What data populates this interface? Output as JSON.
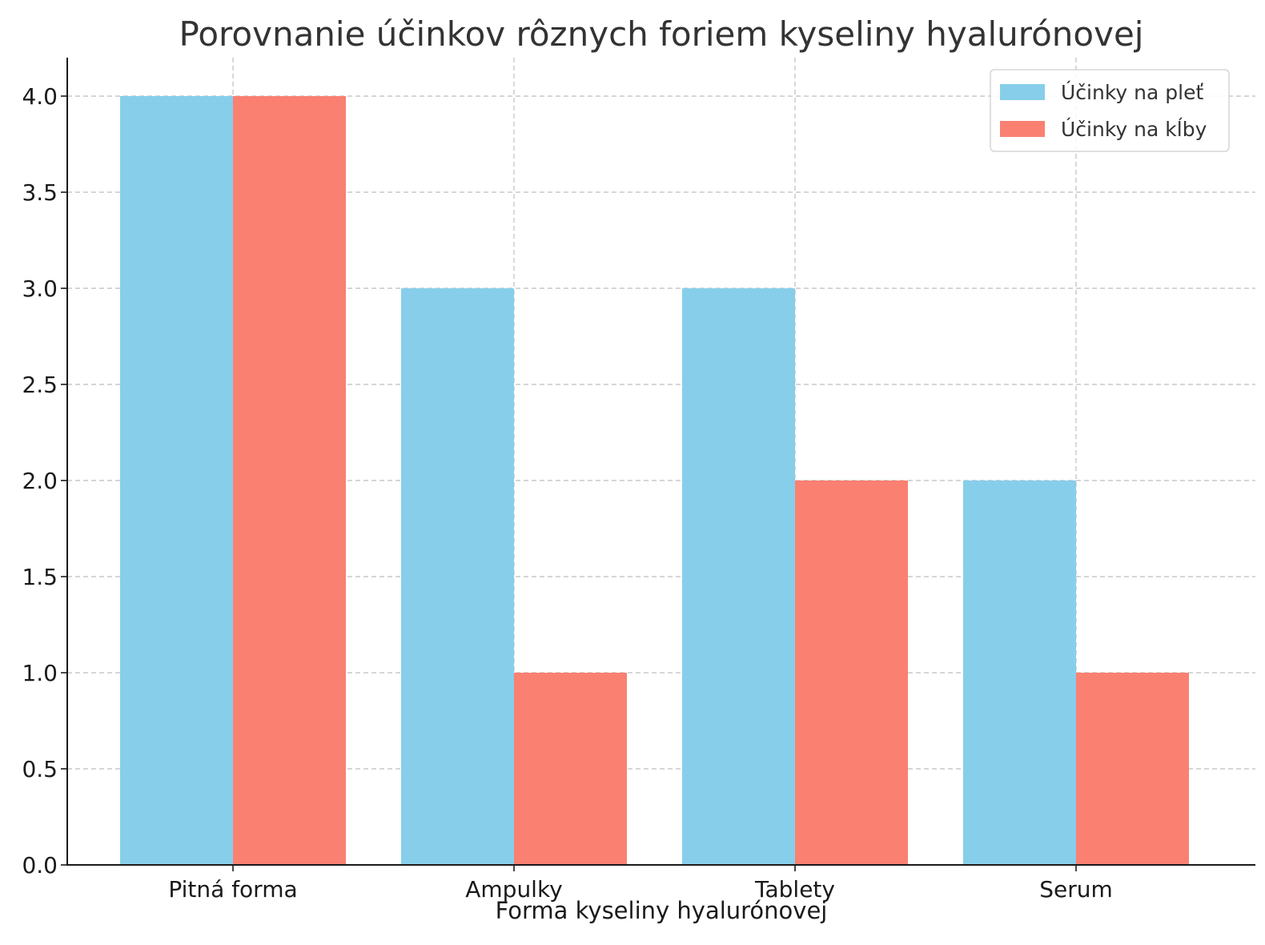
{
  "chart_data": {
    "type": "bar",
    "title": "Porovnanie účinkov rôznych foriem kyseliny hyalurónovej",
    "xlabel": "Forma kyseliny hyalurónovej",
    "ylabel": "",
    "categories": [
      "Pitná forma",
      "Ampulky",
      "Tablety",
      "Serum"
    ],
    "series": [
      {
        "name": "Účinky na pleť",
        "values": [
          4,
          3,
          3,
          2
        ],
        "color": "#87ceeb"
      },
      {
        "name": "Účinky na kĺby",
        "values": [
          4,
          1,
          2,
          1
        ],
        "color": "#fa8072"
      }
    ],
    "ylim": [
      0,
      4.2
    ],
    "yticks": [
      "0.0",
      "0.5",
      "1.0",
      "1.5",
      "2.0",
      "2.5",
      "3.0",
      "3.5",
      "4.0"
    ],
    "grid": true,
    "legend_position": "top-right"
  }
}
